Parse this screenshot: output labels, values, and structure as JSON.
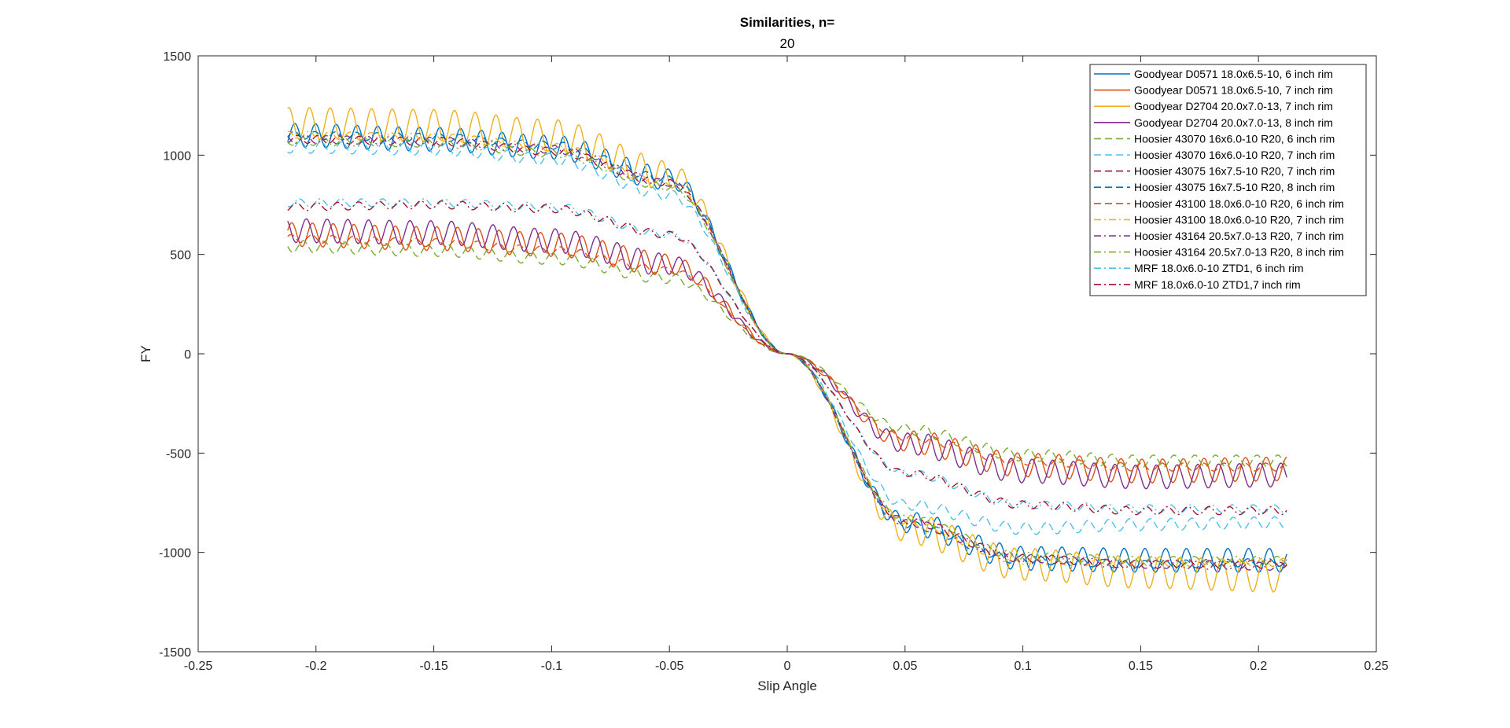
{
  "chart_data": {
    "type": "line",
    "title": "Similarities, n=",
    "subtitle": "20",
    "xlabel": "Slip Angle",
    "ylabel": "FY",
    "xlim": [
      -0.25,
      0.25
    ],
    "ylim": [
      -1500,
      1500
    ],
    "xticks": [
      "-0.25",
      "-0.2",
      "-0.15",
      "-0.1",
      "-0.05",
      "0",
      "0.05",
      "0.1",
      "0.15",
      "0.2",
      "0.25"
    ],
    "yticks": [
      "1500",
      "1000",
      "500",
      "0",
      "-500",
      "-1000",
      "-1500"
    ],
    "legend_position": "top-right",
    "grid": false,
    "series": [
      {
        "name": "Goodyear D0571 18.0x6.5-10, 6 inch rim",
        "color": "#0072BD",
        "style": "solid",
        "shape": "high",
        "x": [
          -0.212,
          -0.15,
          -0.1,
          -0.05,
          0,
          0.05,
          0.1,
          0.15,
          0.212
        ],
        "y": [
          1100,
          1080,
          1040,
          880,
          0,
          -850,
          -1030,
          -1040,
          -1040
        ],
        "wiggle": 60
      },
      {
        "name": "Goodyear D0571 18.0x6.5-10, 7 inch rim",
        "color": "#D95319",
        "style": "solid",
        "shape": "low",
        "x": [
          -0.212,
          -0.15,
          -0.1,
          -0.05,
          0,
          0.05,
          0.1,
          0.15,
          0.212
        ],
        "y": [
          600,
          580,
          550,
          450,
          0,
          -440,
          -560,
          -590,
          -580
        ],
        "wiggle": 60
      },
      {
        "name": "Goodyear D2704 20.0x7.0-13, 7 inch rim",
        "color": "#EDB120",
        "style": "solid",
        "shape": "high",
        "x": [
          -0.212,
          -0.15,
          -0.1,
          -0.05,
          0,
          0.05,
          0.1,
          0.15,
          0.212
        ],
        "y": [
          1160,
          1150,
          1100,
          900,
          0,
          -880,
          -1060,
          -1100,
          -1120
        ],
        "wiggle": 80
      },
      {
        "name": "Goodyear D2704 20.0x7.0-13, 8 inch rim",
        "color": "#7E2F8E",
        "style": "solid",
        "shape": "low",
        "x": [
          -0.212,
          -0.15,
          -0.1,
          -0.05,
          0,
          0.05,
          0.1,
          0.15,
          0.212
        ],
        "y": [
          620,
          610,
          570,
          450,
          0,
          -450,
          -590,
          -620,
          -610
        ],
        "wiggle": 60
      },
      {
        "name": "Hoosier 43070 16x6.0-10 R20, 6 inch rim",
        "color": "#77AC30",
        "style": "dash",
        "shape": "low",
        "x": [
          -0.212,
          -0.15,
          -0.1,
          -0.05,
          0,
          0.05,
          0.1,
          0.15,
          0.212
        ],
        "y": [
          540,
          520,
          480,
          380,
          0,
          -380,
          -510,
          -540,
          -540
        ],
        "wiggle": 30
      },
      {
        "name": "Hoosier 43070 16x6.0-10 R20, 7 inch rim",
        "color": "#4DBEEE",
        "style": "dash",
        "shape": "high",
        "x": [
          -0.212,
          -0.15,
          -0.1,
          -0.05,
          0,
          0.05,
          0.1,
          0.15,
          0.212
        ],
        "y": [
          1040,
          1030,
          980,
          800,
          0,
          -760,
          -880,
          -860,
          -850
        ],
        "wiggle": 30
      },
      {
        "name": "Hoosier 43075 16x7.5-10 R20, 7 inch rim",
        "color": "#A2142F",
        "style": "dash",
        "shape": "high",
        "x": [
          -0.212,
          -0.15,
          -0.1,
          -0.05,
          0,
          0.05,
          0.1,
          0.15,
          0.212
        ],
        "y": [
          1080,
          1070,
          1020,
          860,
          0,
          -840,
          -1030,
          -1060,
          -1060
        ],
        "wiggle": 20
      },
      {
        "name": "Hoosier 43075 16x7.5-10 R20, 8 inch rim",
        "color": "#0072BD",
        "style": "dash",
        "shape": "high",
        "x": [
          -0.212,
          -0.15,
          -0.1,
          -0.05,
          0,
          0.05,
          0.1,
          0.15,
          0.212
        ],
        "y": [
          1100,
          1090,
          1050,
          880,
          0,
          -860,
          -1040,
          -1060,
          -1050
        ],
        "wiggle": 20
      },
      {
        "name": "Hoosier 43100 18.0x6.0-10 R20, 6 inch rim",
        "color": "#D95319",
        "style": "dash",
        "shape": "low",
        "x": [
          -0.212,
          -0.15,
          -0.1,
          -0.05,
          0,
          0.05,
          0.1,
          0.15,
          0.212
        ],
        "y": [
          580,
          560,
          520,
          420,
          0,
          -420,
          -540,
          -570,
          -570
        ],
        "wiggle": 20
      },
      {
        "name": "Hoosier 43100 18.0x6.0-10 R20, 7 inch rim",
        "color": "#EDB120",
        "style": "dashdot",
        "shape": "high",
        "x": [
          -0.212,
          -0.15,
          -0.1,
          -0.05,
          0,
          0.05,
          0.1,
          0.15,
          0.212
        ],
        "y": [
          1100,
          1090,
          1040,
          860,
          0,
          -850,
          -1040,
          -1050,
          -1050
        ],
        "wiggle": 20
      },
      {
        "name": "Hoosier 43164 20.5x7.0-13 R20, 7 inch rim",
        "color": "#7E2F8E",
        "style": "dashdot",
        "shape": "high",
        "x": [
          -0.212,
          -0.15,
          -0.1,
          -0.05,
          0,
          0.05,
          0.1,
          0.15,
          0.212
        ],
        "y": [
          1080,
          1070,
          1030,
          860,
          0,
          -850,
          -1030,
          -1060,
          -1070
        ],
        "wiggle": 20
      },
      {
        "name": "Hoosier 43164 20.5x7.0-13 R20, 8 inch rim",
        "color": "#77AC30",
        "style": "dashdot",
        "shape": "high",
        "x": [
          -0.212,
          -0.15,
          -0.1,
          -0.05,
          0,
          0.05,
          0.1,
          0.15,
          0.212
        ],
        "y": [
          1070,
          1060,
          1010,
          840,
          0,
          -830,
          -1020,
          -1040,
          -1040
        ],
        "wiggle": 20
      },
      {
        "name": "MRF 18.0x6.0-10 ZTD1, 6 inch rim",
        "color": "#4DBEEE",
        "style": "dashdot",
        "shape": "mid",
        "x": [
          -0.212,
          -0.15,
          -0.1,
          -0.05,
          0,
          0.05,
          0.1,
          0.15,
          0.212
        ],
        "y": [
          760,
          760,
          740,
          600,
          0,
          -600,
          -760,
          -780,
          -780
        ],
        "wiggle": 20
      },
      {
        "name": "MRF 18.0x6.0-10 ZTD1,7 inch rim",
        "color": "#A2142F",
        "style": "dashdot",
        "shape": "mid",
        "x": [
          -0.212,
          -0.15,
          -0.1,
          -0.05,
          0,
          0.05,
          0.1,
          0.15,
          0.212
        ],
        "y": [
          740,
          750,
          730,
          600,
          0,
          -600,
          -760,
          -790,
          -790
        ],
        "wiggle": 20
      }
    ]
  }
}
